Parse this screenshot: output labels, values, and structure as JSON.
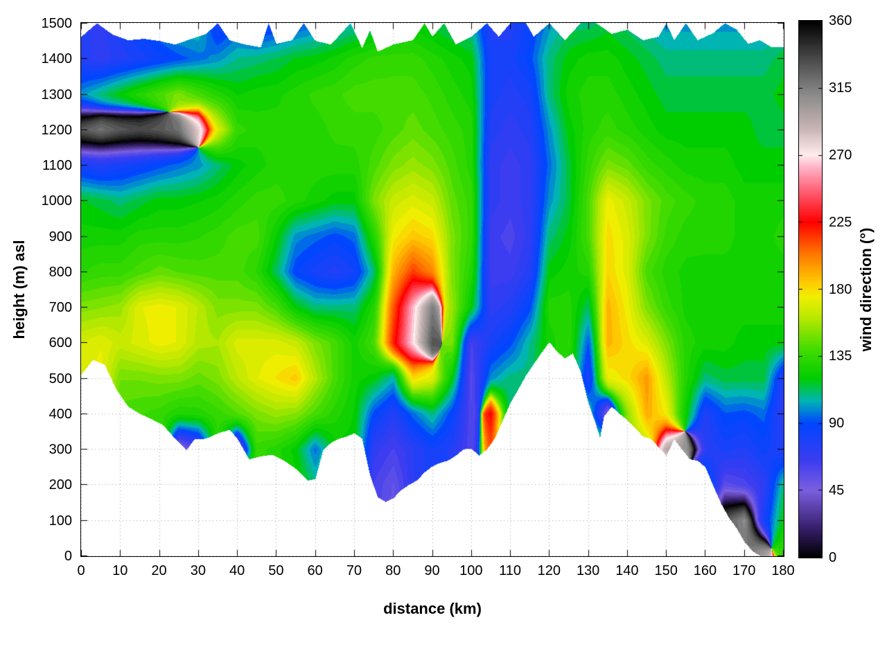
{
  "axes": {
    "x": {
      "label": "distance (km)",
      "min": 0,
      "max": 180,
      "ticks": [
        0,
        10,
        20,
        30,
        40,
        50,
        60,
        70,
        80,
        90,
        100,
        110,
        120,
        130,
        140,
        150,
        160,
        170,
        180
      ]
    },
    "y": {
      "label": "height (m) asl",
      "min": 0,
      "max": 1500,
      "ticks": [
        0,
        100,
        200,
        300,
        400,
        500,
        600,
        700,
        800,
        900,
        1000,
        1100,
        1200,
        1300,
        1400,
        1500
      ]
    },
    "colorbar": {
      "label": "wind direction (°)",
      "min": 0,
      "max": 360,
      "ticks": [
        0,
        45,
        90,
        135,
        180,
        225,
        270,
        315,
        360
      ]
    }
  },
  "chart_data": {
    "type": "heatmap",
    "title": "",
    "xlabel": "distance (km)",
    "ylabel": "height (m) asl",
    "value_label": "wind direction (°)",
    "x_km": [
      0,
      5,
      10,
      15,
      20,
      25,
      30,
      35,
      40,
      45,
      50,
      55,
      60,
      65,
      70,
      75,
      80,
      85,
      90,
      95,
      100,
      105,
      110,
      115,
      120,
      125,
      130,
      135,
      140,
      145,
      150,
      155,
      160,
      165,
      170,
      175,
      180
    ],
    "y_m": [
      0,
      100,
      200,
      300,
      400,
      500,
      600,
      700,
      800,
      900,
      1000,
      1100,
      1200,
      1300,
      1400,
      1500
    ],
    "wind_direction_deg": [
      [
        170,
        170,
        170,
        170,
        170,
        170,
        168,
        150,
        132,
        125,
        118,
        80,
        330,
        100,
        75,
        75
      ],
      [
        175,
        175,
        175,
        175,
        175,
        175,
        172,
        152,
        135,
        125,
        115,
        75,
        320,
        110,
        70,
        70
      ],
      [
        150,
        150,
        150,
        150,
        140,
        148,
        165,
        155,
        135,
        125,
        110,
        80,
        330,
        120,
        75,
        80
      ],
      [
        145,
        145,
        145,
        145,
        138,
        148,
        170,
        172,
        140,
        130,
        115,
        85,
        335,
        130,
        80,
        90
      ],
      [
        140,
        140,
        140,
        140,
        135,
        150,
        175,
        175,
        145,
        130,
        120,
        90,
        330,
        140,
        85,
        100
      ],
      [
        135,
        135,
        135,
        40,
        128,
        150,
        172,
        172,
        142,
        130,
        120,
        95,
        320,
        150,
        90,
        110
      ],
      [
        130,
        130,
        130,
        60,
        130,
        145,
        160,
        162,
        140,
        132,
        122,
        100,
        280,
        140,
        95,
        110
      ],
      [
        130,
        130,
        130,
        130,
        135,
        150,
        158,
        150,
        140,
        135,
        125,
        110,
        170,
        130,
        100,
        80
      ],
      [
        135,
        135,
        135,
        45,
        142,
        162,
        170,
        150,
        140,
        140,
        130,
        120,
        135,
        122,
        108,
        90
      ],
      [
        135,
        135,
        135,
        135,
        150,
        172,
        170,
        150,
        132,
        140,
        135,
        125,
        130,
        125,
        110,
        80
      ],
      [
        130,
        130,
        130,
        130,
        155,
        178,
        170,
        140,
        112,
        122,
        135,
        130,
        130,
        126,
        113,
        85
      ],
      [
        125,
        125,
        125,
        120,
        152,
        185,
        165,
        120,
        88,
        100,
        130,
        130,
        130,
        130,
        118,
        90
      ],
      [
        110,
        110,
        110,
        95,
        140,
        160,
        150,
        110,
        80,
        95,
        125,
        130,
        130,
        134,
        120,
        95
      ],
      [
        120,
        120,
        120,
        120,
        130,
        140,
        140,
        110,
        75,
        90,
        120,
        130,
        134,
        136,
        124,
        100
      ],
      [
        120,
        120,
        120,
        120,
        122,
        125,
        125,
        110,
        82,
        95,
        120,
        130,
        135,
        140,
        130,
        105
      ],
      [
        60,
        60,
        62,
        70,
        90,
        120,
        140,
        130,
        110,
        130,
        150,
        140,
        135,
        140,
        134,
        110
      ],
      [
        50,
        50,
        52,
        62,
        75,
        105,
        220,
        210,
        190,
        175,
        165,
        150,
        140,
        140,
        135,
        115
      ],
      [
        70,
        70,
        72,
        72,
        95,
        180,
        268,
        262,
        215,
        185,
        170,
        155,
        145,
        140,
        135,
        120
      ],
      [
        80,
        80,
        80,
        82,
        110,
        170,
        330,
        315,
        200,
        180,
        165,
        150,
        140,
        136,
        130,
        115
      ],
      [
        78,
        78,
        78,
        76,
        88,
        120,
        150,
        155,
        150,
        150,
        145,
        140,
        135,
        130,
        125,
        110
      ],
      [
        60,
        60,
        60,
        58,
        58,
        56,
        62,
        120,
        130,
        135,
        135,
        130,
        130,
        125,
        120,
        105
      ],
      [
        200,
        200,
        200,
        210,
        225,
        100,
        80,
        70,
        65,
        65,
        70,
        70,
        75,
        80,
        80,
        75
      ],
      [
        110,
        110,
        110,
        110,
        110,
        110,
        90,
        75,
        65,
        60,
        65,
        65,
        70,
        75,
        80,
        75
      ],
      [
        110,
        110,
        110,
        110,
        110,
        110,
        108,
        90,
        75,
        70,
        70,
        70,
        75,
        80,
        90,
        85
      ],
      [
        125,
        125,
        125,
        125,
        125,
        125,
        125,
        130,
        120,
        110,
        100,
        95,
        100,
        110,
        110,
        100
      ],
      [
        130,
        130,
        130,
        130,
        130,
        130,
        133,
        130,
        125,
        120,
        115,
        115,
        120,
        125,
        120,
        110
      ],
      [
        110,
        110,
        110,
        110,
        110,
        78,
        92,
        112,
        130,
        140,
        140,
        135,
        130,
        130,
        125,
        110
      ],
      [
        140,
        140,
        140,
        140,
        45,
        172,
        190,
        190,
        182,
        180,
        175,
        150,
        135,
        130,
        125,
        115
      ],
      [
        150,
        150,
        150,
        150,
        152,
        180,
        180,
        175,
        170,
        170,
        165,
        145,
        130,
        125,
        120,
        110
      ],
      [
        160,
        160,
        160,
        160,
        192,
        196,
        170,
        150,
        140,
        150,
        150,
        135,
        125,
        120,
        115,
        105
      ],
      [
        170,
        170,
        170,
        295,
        176,
        162,
        150,
        135,
        130,
        136,
        140,
        130,
        120,
        115,
        110,
        100
      ],
      [
        150,
        150,
        150,
        305,
        122,
        130,
        130,
        126,
        126,
        130,
        135,
        125,
        120,
        115,
        110,
        100
      ],
      [
        100,
        100,
        100,
        72,
        76,
        110,
        125,
        125,
        125,
        130,
        130,
        125,
        120,
        115,
        110,
        100
      ],
      [
        330,
        330,
        55,
        80,
        92,
        115,
        125,
        125,
        125,
        130,
        130,
        125,
        120,
        115,
        110,
        100
      ],
      [
        320,
        310,
        60,
        76,
        90,
        115,
        120,
        125,
        125,
        125,
        125,
        120,
        120,
        115,
        110,
        100
      ],
      [
        300,
        80,
        70,
        85,
        95,
        115,
        120,
        125,
        125,
        125,
        125,
        120,
        115,
        115,
        110,
        100
      ],
      [
        135,
        120,
        110,
        75,
        70,
        75,
        120,
        125,
        125,
        130,
        125,
        120,
        115,
        120,
        115,
        105
      ]
    ],
    "terrain_profile_km_m": [
      [
        0,
        510
      ],
      [
        3,
        552
      ],
      [
        6,
        538
      ],
      [
        9,
        468
      ],
      [
        12,
        420
      ],
      [
        15,
        400
      ],
      [
        18,
        385
      ],
      [
        21,
        368
      ],
      [
        24,
        330
      ],
      [
        27,
        298
      ],
      [
        29,
        328
      ],
      [
        32,
        330
      ],
      [
        35,
        345
      ],
      [
        38,
        355
      ],
      [
        40,
        330
      ],
      [
        43,
        272
      ],
      [
        46,
        280
      ],
      [
        49,
        285
      ],
      [
        52,
        268
      ],
      [
        55,
        245
      ],
      [
        58,
        212
      ],
      [
        60,
        216
      ],
      [
        62,
        298
      ],
      [
        64,
        318
      ],
      [
        66,
        330
      ],
      [
        68,
        336
      ],
      [
        70,
        345
      ],
      [
        72,
        330
      ],
      [
        74,
        228
      ],
      [
        76,
        165
      ],
      [
        78,
        152
      ],
      [
        80,
        162
      ],
      [
        82,
        185
      ],
      [
        84,
        200
      ],
      [
        86,
        212
      ],
      [
        88,
        235
      ],
      [
        90,
        252
      ],
      [
        92,
        262
      ],
      [
        94,
        268
      ],
      [
        96,
        282
      ],
      [
        98,
        300
      ],
      [
        100,
        302
      ],
      [
        102,
        282
      ],
      [
        104,
        300
      ],
      [
        106,
        330
      ],
      [
        108,
        380
      ],
      [
        110,
        430
      ],
      [
        112,
        468
      ],
      [
        114,
        508
      ],
      [
        116,
        540
      ],
      [
        118,
        572
      ],
      [
        120,
        602
      ],
      [
        122,
        575
      ],
      [
        124,
        556
      ],
      [
        126,
        570
      ],
      [
        128,
        520
      ],
      [
        130,
        432
      ],
      [
        132,
        368
      ],
      [
        133,
        332
      ],
      [
        134,
        392
      ],
      [
        136,
        420
      ],
      [
        138,
        400
      ],
      [
        140,
        382
      ],
      [
        142,
        360
      ],
      [
        144,
        336
      ],
      [
        146,
        330
      ],
      [
        148,
        306
      ],
      [
        150,
        282
      ],
      [
        152,
        328
      ],
      [
        154,
        300
      ],
      [
        156,
        272
      ],
      [
        158,
        268
      ],
      [
        160,
        250
      ],
      [
        162,
        198
      ],
      [
        164,
        148
      ],
      [
        166,
        108
      ],
      [
        168,
        78
      ],
      [
        170,
        40
      ],
      [
        172,
        14
      ],
      [
        174,
        0
      ],
      [
        180,
        0
      ]
    ],
    "data_top_km_m": [
      [
        0,
        1462
      ],
      [
        4,
        1500
      ],
      [
        8,
        1468
      ],
      [
        12,
        1452
      ],
      [
        16,
        1456
      ],
      [
        20,
        1450
      ],
      [
        24,
        1440
      ],
      [
        28,
        1455
      ],
      [
        32,
        1470
      ],
      [
        35,
        1500
      ],
      [
        38,
        1452
      ],
      [
        42,
        1440
      ],
      [
        46,
        1432
      ],
      [
        48,
        1500
      ],
      [
        50,
        1442
      ],
      [
        54,
        1452
      ],
      [
        57,
        1500
      ],
      [
        60,
        1450
      ],
      [
        64,
        1440
      ],
      [
        69,
        1500
      ],
      [
        72,
        1430
      ],
      [
        74,
        1480
      ],
      [
        76,
        1420
      ],
      [
        80,
        1440
      ],
      [
        85,
        1452
      ],
      [
        88,
        1500
      ],
      [
        90,
        1462
      ],
      [
        93,
        1500
      ],
      [
        96,
        1440
      ],
      [
        100,
        1462
      ],
      [
        104,
        1500
      ],
      [
        107,
        1462
      ],
      [
        110,
        1500
      ],
      [
        114,
        1500
      ],
      [
        116,
        1462
      ],
      [
        120,
        1500
      ],
      [
        124,
        1452
      ],
      [
        128,
        1500
      ],
      [
        132,
        1500
      ],
      [
        136,
        1470
      ],
      [
        140,
        1482
      ],
      [
        144,
        1452
      ],
      [
        148,
        1462
      ],
      [
        150,
        1500
      ],
      [
        152,
        1452
      ],
      [
        155,
        1500
      ],
      [
        158,
        1452
      ],
      [
        162,
        1472
      ],
      [
        165,
        1500
      ],
      [
        168,
        1482
      ],
      [
        171,
        1442
      ],
      [
        174,
        1452
      ],
      [
        177,
        1432
      ],
      [
        180,
        1432
      ]
    ],
    "palette_stops": [
      [
        0,
        "#000000"
      ],
      [
        20,
        "#38206e"
      ],
      [
        45,
        "#7a5fe0"
      ],
      [
        65,
        "#3c3cf0"
      ],
      [
        90,
        "#0046ff"
      ],
      [
        105,
        "#00b4b4"
      ],
      [
        120,
        "#00cd00"
      ],
      [
        140,
        "#44dc00"
      ],
      [
        160,
        "#b4e800"
      ],
      [
        175,
        "#f0ee00"
      ],
      [
        185,
        "#ffc800"
      ],
      [
        205,
        "#ff7000"
      ],
      [
        225,
        "#ff0000"
      ],
      [
        245,
        "#ff5a6e"
      ],
      [
        262,
        "#ffb4c8"
      ],
      [
        270,
        "#ffecec"
      ],
      [
        288,
        "#c8b4b4"
      ],
      [
        310,
        "#8c8c8c"
      ],
      [
        335,
        "#484848"
      ],
      [
        360,
        "#000000"
      ]
    ],
    "band_step_deg": 5,
    "grid_on": true,
    "xlim": [
      0,
      180
    ],
    "ylim": [
      0,
      1500
    ],
    "clim": [
      0,
      360
    ]
  }
}
